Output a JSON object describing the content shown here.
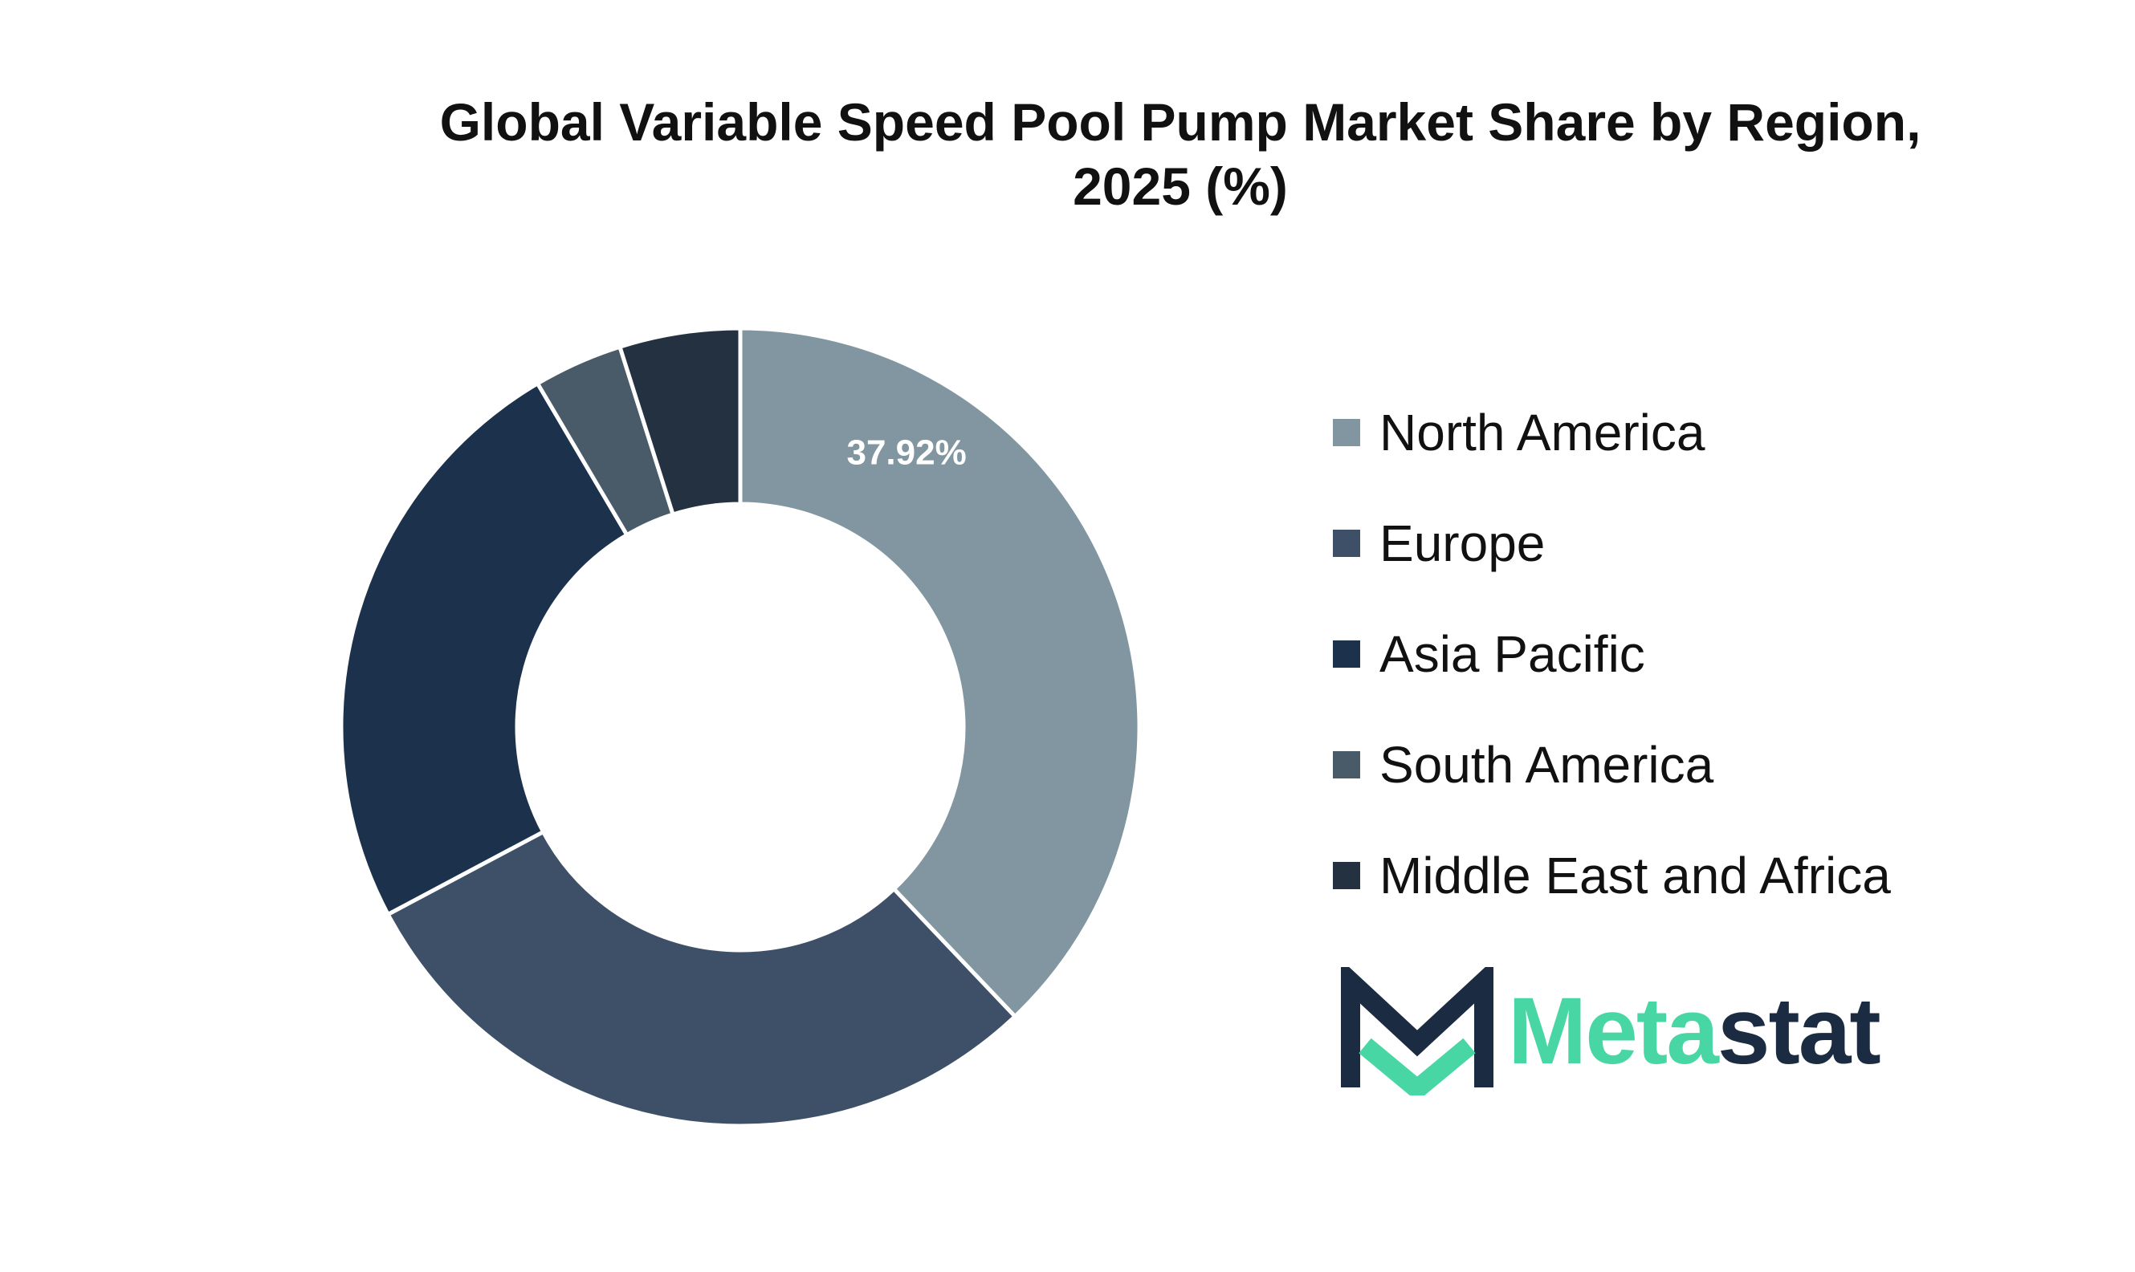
{
  "chart_data": {
    "type": "pie",
    "title": "Global Variable Speed Pool Pump Market Share by Region, 2025 (%)",
    "title_lines": [
      "Global Variable Speed Pool Pump Market Share by Region,",
      "2025 (%)"
    ],
    "donut": true,
    "categories": [
      "North America",
      "Europe",
      "Asia Pacific",
      "South America",
      "Middle East and Africa"
    ],
    "values": [
      37.92,
      29.3,
      24.3,
      3.6,
      4.88
    ],
    "data_labels": [
      "37.92%",
      "",
      "",
      "",
      ""
    ],
    "colors": [
      "#8196a1",
      "#3e5068",
      "#1c314c",
      "#495b68",
      "#243141"
    ],
    "legend_position": "right"
  },
  "logo": {
    "text_part1": "Meta",
    "text_part2": "stat",
    "accent_color": "#49d6a5",
    "dark_color": "#1b2b42"
  }
}
